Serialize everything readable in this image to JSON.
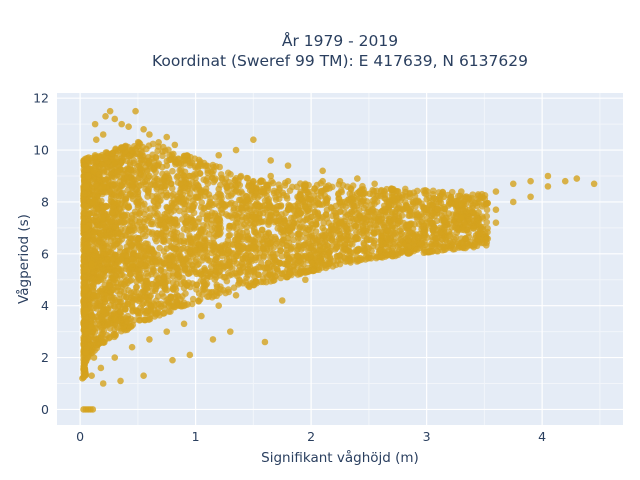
{
  "chart_data": {
    "type": "scatter",
    "title_lines": [
      "År 1979 - 2019",
      "Koordinat (Sweref 99 TM): E 417639, N 6137629"
    ],
    "xlabel": "Signifikant våghöjd (m)",
    "ylabel": "Vågperiod (s)",
    "xlim": [
      -0.2,
      4.7
    ],
    "ylim": [
      -0.6,
      12.2
    ],
    "xticks": [
      0,
      1,
      2,
      3,
      4
    ],
    "xtick_labels": [
      "0",
      "1",
      "2",
      "3",
      "4"
    ],
    "yticks": [
      0,
      2,
      4,
      6,
      8,
      10,
      12
    ],
    "ytick_labels": [
      "0",
      "2",
      "4",
      "6",
      "8",
      "10",
      "12"
    ],
    "grid": true,
    "legend": "none",
    "series": [
      {
        "color": "#d4a21d",
        "points": [
          [
            0.03,
            0.0
          ],
          [
            0.05,
            0.0
          ],
          [
            0.07,
            0.0
          ],
          [
            0.09,
            0.0
          ],
          [
            0.11,
            0.0
          ],
          [
            0.02,
            1.2
          ],
          [
            0.04,
            1.6
          ],
          [
            0.05,
            2.2
          ],
          [
            0.06,
            3.0
          ],
          [
            0.05,
            3.8
          ],
          [
            0.04,
            4.6
          ],
          [
            0.05,
            5.4
          ],
          [
            0.06,
            6.2
          ],
          [
            0.05,
            7.0
          ],
          [
            0.06,
            7.8
          ],
          [
            0.05,
            8.6
          ],
          [
            0.07,
            9.0
          ],
          [
            0.1,
            1.3
          ],
          [
            0.12,
            2.0
          ],
          [
            0.1,
            3.2
          ],
          [
            0.12,
            4.4
          ],
          [
            0.1,
            5.6
          ],
          [
            0.12,
            6.8
          ],
          [
            0.11,
            8.0
          ],
          [
            0.12,
            9.2
          ],
          [
            0.13,
            9.8
          ],
          [
            0.14,
            10.4
          ],
          [
            0.13,
            11.0
          ],
          [
            0.18,
            1.6
          ],
          [
            0.2,
            2.6
          ],
          [
            0.2,
            3.8
          ],
          [
            0.18,
            5.0
          ],
          [
            0.2,
            6.2
          ],
          [
            0.19,
            7.4
          ],
          [
            0.2,
            8.6
          ],
          [
            0.19,
            9.8
          ],
          [
            0.2,
            10.6
          ],
          [
            0.22,
            11.3
          ],
          [
            0.26,
            11.5
          ],
          [
            0.3,
            11.2
          ],
          [
            0.36,
            11.0
          ],
          [
            0.42,
            10.9
          ],
          [
            0.48,
            11.5
          ],
          [
            0.55,
            10.8
          ],
          [
            0.6,
            10.6
          ],
          [
            0.68,
            10.3
          ],
          [
            0.75,
            10.5
          ],
          [
            0.82,
            10.2
          ],
          [
            0.3,
            2.0
          ],
          [
            0.3,
            3.5
          ],
          [
            0.3,
            5.0
          ],
          [
            0.3,
            6.5
          ],
          [
            0.3,
            8.0
          ],
          [
            0.3,
            9.5
          ],
          [
            0.45,
            2.4
          ],
          [
            0.45,
            4.0
          ],
          [
            0.45,
            5.6
          ],
          [
            0.45,
            7.2
          ],
          [
            0.45,
            8.8
          ],
          [
            0.45,
            10.0
          ],
          [
            0.6,
            2.7
          ],
          [
            0.6,
            4.2
          ],
          [
            0.6,
            5.8
          ],
          [
            0.6,
            7.4
          ],
          [
            0.6,
            9.0
          ],
          [
            0.75,
            3.0
          ],
          [
            0.75,
            4.6
          ],
          [
            0.75,
            6.2
          ],
          [
            0.75,
            7.8
          ],
          [
            0.75,
            9.4
          ],
          [
            0.9,
            3.3
          ],
          [
            0.9,
            4.9
          ],
          [
            0.9,
            6.5
          ],
          [
            0.9,
            8.1
          ],
          [
            0.9,
            9.6
          ],
          [
            1.05,
            3.6
          ],
          [
            1.05,
            5.2
          ],
          [
            1.05,
            6.8
          ],
          [
            1.05,
            8.4
          ],
          [
            1.05,
            9.4
          ],
          [
            1.2,
            4.0
          ],
          [
            1.2,
            5.5
          ],
          [
            1.2,
            7.0
          ],
          [
            1.2,
            8.5
          ],
          [
            1.2,
            9.8
          ],
          [
            1.35,
            4.4
          ],
          [
            1.35,
            5.9
          ],
          [
            1.35,
            7.2
          ],
          [
            1.35,
            8.6
          ],
          [
            1.35,
            10.0
          ],
          [
            1.5,
            4.8
          ],
          [
            1.5,
            6.2
          ],
          [
            1.5,
            7.4
          ],
          [
            1.5,
            8.8
          ],
          [
            1.5,
            10.4
          ],
          [
            1.65,
            5.2
          ],
          [
            1.65,
            6.4
          ],
          [
            1.65,
            7.6
          ],
          [
            1.65,
            9.0
          ],
          [
            1.65,
            9.6
          ],
          [
            1.8,
            5.6
          ],
          [
            1.8,
            6.6
          ],
          [
            1.8,
            7.7
          ],
          [
            1.8,
            8.8
          ],
          [
            1.8,
            9.4
          ],
          [
            1.95,
            5.9
          ],
          [
            1.95,
            6.8
          ],
          [
            1.95,
            7.8
          ],
          [
            1.95,
            8.7
          ],
          [
            2.1,
            6.2
          ],
          [
            2.1,
            7.0
          ],
          [
            2.1,
            7.9
          ],
          [
            2.1,
            8.8
          ],
          [
            2.1,
            9.2
          ],
          [
            2.25,
            6.4
          ],
          [
            2.25,
            7.2
          ],
          [
            2.25,
            8.0
          ],
          [
            2.25,
            8.8
          ],
          [
            2.4,
            6.6
          ],
          [
            2.4,
            7.3
          ],
          [
            2.4,
            8.1
          ],
          [
            2.4,
            8.9
          ],
          [
            2.55,
            6.8
          ],
          [
            2.55,
            7.4
          ],
          [
            2.55,
            8.1
          ],
          [
            2.55,
            8.7
          ],
          [
            2.7,
            7.0
          ],
          [
            2.7,
            7.6
          ],
          [
            2.7,
            8.2
          ],
          [
            2.7,
            8.5
          ],
          [
            2.85,
            7.1
          ],
          [
            2.85,
            7.7
          ],
          [
            2.85,
            8.2
          ],
          [
            3.0,
            7.2
          ],
          [
            3.0,
            7.7
          ],
          [
            3.0,
            8.1
          ],
          [
            3.15,
            7.3
          ],
          [
            3.15,
            7.8
          ],
          [
            3.15,
            8.2
          ],
          [
            3.3,
            7.4
          ],
          [
            3.3,
            7.9
          ],
          [
            3.3,
            8.4
          ],
          [
            3.45,
            7.6
          ],
          [
            3.45,
            8.0
          ],
          [
            3.6,
            7.7
          ],
          [
            3.6,
            8.4
          ],
          [
            3.75,
            8.0
          ],
          [
            3.75,
            8.7
          ],
          [
            3.9,
            8.2
          ],
          [
            3.9,
            8.8
          ],
          [
            4.05,
            8.6
          ],
          [
            4.05,
            9.0
          ],
          [
            4.2,
            8.8
          ],
          [
            4.3,
            8.9
          ],
          [
            4.45,
            8.7
          ],
          [
            1.6,
            2.6
          ],
          [
            1.75,
            4.2
          ],
          [
            1.95,
            5.0
          ],
          [
            2.3,
            5.7
          ],
          [
            2.8,
            6.3
          ],
          [
            3.2,
            6.7
          ],
          [
            3.6,
            7.2
          ],
          [
            1.3,
            3.0
          ],
          [
            1.15,
            2.7
          ],
          [
            0.95,
            2.1
          ],
          [
            0.8,
            1.9
          ],
          [
            0.55,
            1.3
          ],
          [
            0.35,
            1.1
          ],
          [
            0.2,
            1.0
          ]
        ]
      }
    ]
  }
}
